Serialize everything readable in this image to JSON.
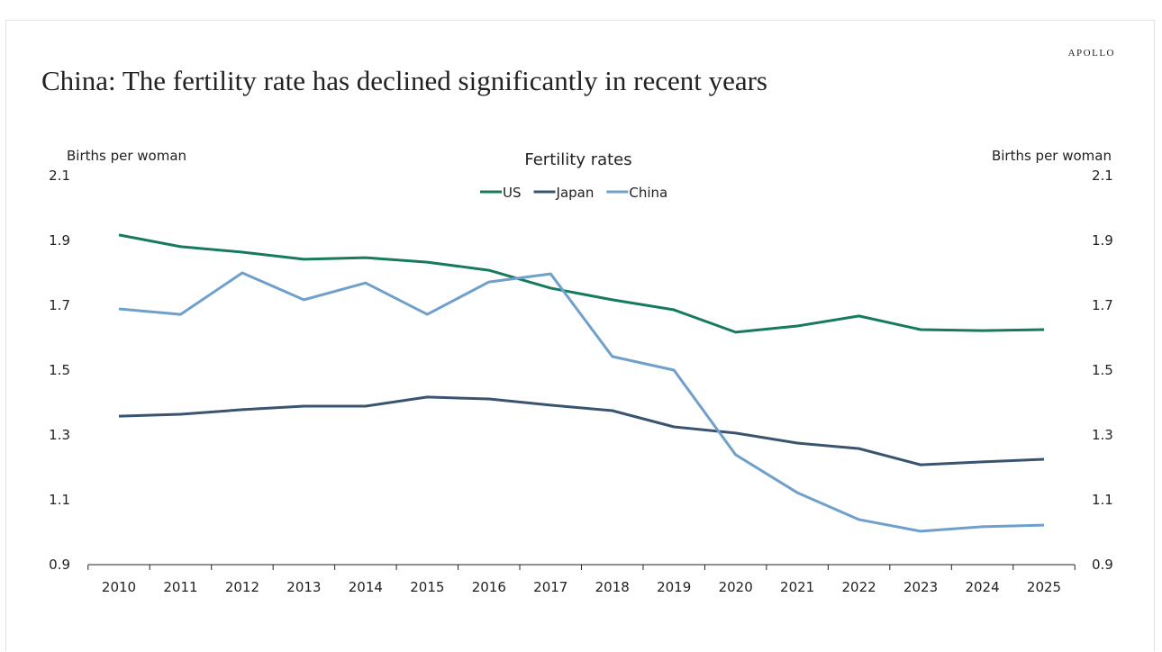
{
  "header": {
    "title": "China: The fertility rate has declined significantly in recent years",
    "logo": "APOLLO"
  },
  "chart_data": {
    "type": "line",
    "title": "Fertility rates",
    "ylabel_left": "Births per woman",
    "ylabel_right": "Births per woman",
    "ylim": [
      0.9,
      2.1
    ],
    "yticks": [
      "0.9",
      "1.1",
      "1.3",
      "1.5",
      "1.7",
      "1.9",
      "2.1"
    ],
    "x": [
      "2010",
      "2011",
      "2012",
      "2013",
      "2014",
      "2015",
      "2016",
      "2017",
      "2018",
      "2019",
      "2020",
      "2021",
      "2022",
      "2023",
      "2024",
      "2025"
    ],
    "legend_position": "top-center",
    "series": [
      {
        "name": "US",
        "color": "#167a5e",
        "values": [
          1.917,
          1.881,
          1.864,
          1.842,
          1.847,
          1.833,
          1.808,
          1.753,
          1.717,
          1.686,
          1.617,
          1.636,
          1.667,
          1.625,
          1.622,
          1.625
        ]
      },
      {
        "name": "Japan",
        "color": "#3a5470",
        "values": [
          1.358,
          1.364,
          1.378,
          1.389,
          1.389,
          1.417,
          1.411,
          1.392,
          1.375,
          1.325,
          1.306,
          1.275,
          1.258,
          1.208,
          1.217,
          1.225
        ]
      },
      {
        "name": "China",
        "color": "#6fa0cc",
        "values": [
          1.689,
          1.672,
          1.8,
          1.717,
          1.769,
          1.672,
          1.772,
          1.797,
          1.542,
          1.5,
          1.239,
          1.122,
          1.039,
          1.003,
          1.017,
          1.022
        ]
      }
    ]
  }
}
